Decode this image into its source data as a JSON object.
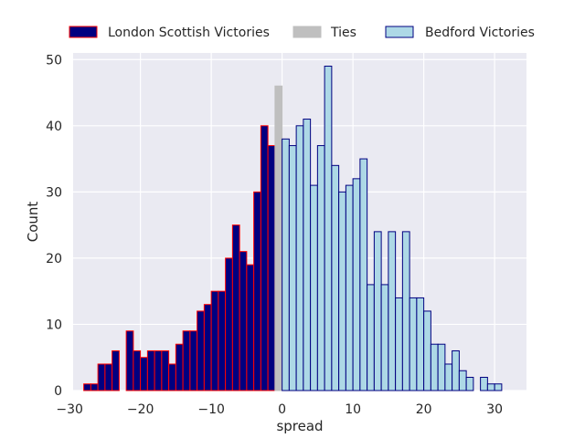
{
  "chart_data": {
    "type": "bar",
    "xlabel": "spread",
    "ylabel": "Count",
    "xlim": [
      -29.5,
      34.5
    ],
    "ylim": [
      0,
      51
    ],
    "x_ticks": [
      -30,
      -20,
      -10,
      0,
      10,
      20,
      30
    ],
    "y_ticks": [
      0,
      10,
      20,
      30,
      40,
      50
    ],
    "grid": true,
    "legend_position": "top",
    "bin_width": 1,
    "series": [
      {
        "name": "London Scottish Victories",
        "fill": "#000080",
        "stroke": "#ff0000",
        "bins": [
          {
            "x": -28,
            "count": 1
          },
          {
            "x": -27,
            "count": 1
          },
          {
            "x": -26,
            "count": 4
          },
          {
            "x": -25,
            "count": 4
          },
          {
            "x": -24,
            "count": 6
          },
          {
            "x": -23,
            "count": 0
          },
          {
            "x": -22,
            "count": 9
          },
          {
            "x": -21,
            "count": 6
          },
          {
            "x": -20,
            "count": 5
          },
          {
            "x": -19,
            "count": 6
          },
          {
            "x": -18,
            "count": 6
          },
          {
            "x": -17,
            "count": 6
          },
          {
            "x": -16,
            "count": 4
          },
          {
            "x": -15,
            "count": 7
          },
          {
            "x": -14,
            "count": 9
          },
          {
            "x": -13,
            "count": 9
          },
          {
            "x": -12,
            "count": 12
          },
          {
            "x": -11,
            "count": 13
          },
          {
            "x": -10,
            "count": 15
          },
          {
            "x": -9,
            "count": 15
          },
          {
            "x": -8,
            "count": 20
          },
          {
            "x": -7,
            "count": 25
          },
          {
            "x": -6,
            "count": 21
          },
          {
            "x": -5,
            "count": 19
          },
          {
            "x": -4,
            "count": 30
          },
          {
            "x": -3,
            "count": 40
          },
          {
            "x": -2,
            "count": 37
          }
        ]
      },
      {
        "name": "Ties",
        "fill": "#bfbfbf",
        "stroke": "#bfbfbf",
        "bins": [
          {
            "x": -1,
            "count": 46
          }
        ]
      },
      {
        "name": "Bedford Victories",
        "fill": "#add8e6",
        "stroke": "#000080",
        "bins": [
          {
            "x": 0,
            "count": 38
          },
          {
            "x": 1,
            "count": 37
          },
          {
            "x": 2,
            "count": 40
          },
          {
            "x": 3,
            "count": 41
          },
          {
            "x": 4,
            "count": 31
          },
          {
            "x": 5,
            "count": 37
          },
          {
            "x": 6,
            "count": 49
          },
          {
            "x": 7,
            "count": 34
          },
          {
            "x": 8,
            "count": 30
          },
          {
            "x": 9,
            "count": 31
          },
          {
            "x": 10,
            "count": 32
          },
          {
            "x": 11,
            "count": 35
          },
          {
            "x": 12,
            "count": 16
          },
          {
            "x": 13,
            "count": 24
          },
          {
            "x": 14,
            "count": 16
          },
          {
            "x": 15,
            "count": 24
          },
          {
            "x": 16,
            "count": 14
          },
          {
            "x": 17,
            "count": 24
          },
          {
            "x": 18,
            "count": 14
          },
          {
            "x": 19,
            "count": 14
          },
          {
            "x": 20,
            "count": 12
          },
          {
            "x": 21,
            "count": 7
          },
          {
            "x": 22,
            "count": 7
          },
          {
            "x": 23,
            "count": 4
          },
          {
            "x": 24,
            "count": 6
          },
          {
            "x": 25,
            "count": 3
          },
          {
            "x": 26,
            "count": 2
          },
          {
            "x": 27,
            "count": 0
          },
          {
            "x": 28,
            "count": 2
          },
          {
            "x": 29,
            "count": 1
          },
          {
            "x": 30,
            "count": 1
          }
        ]
      }
    ]
  }
}
